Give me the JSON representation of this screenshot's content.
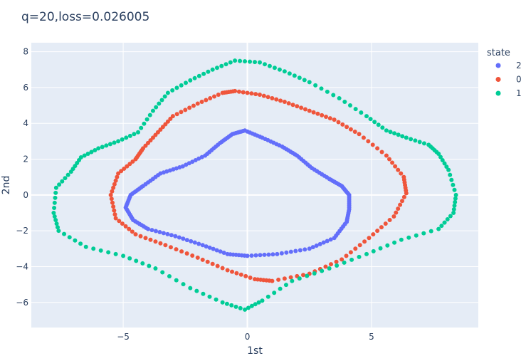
{
  "chart_data": {
    "type": "scatter",
    "title": "q=20,loss=0.026005",
    "xlabel": "1st",
    "ylabel": "2nd",
    "legend_title": "state",
    "legend_position": "top-right",
    "grid": true,
    "xlim": [
      -8.7,
      9.3
    ],
    "ylim": [
      -7.4,
      8.5
    ],
    "xticks": [
      -5,
      0,
      5
    ],
    "xtick_labels": [
      "−5",
      "0",
      "5"
    ],
    "yticks": [
      -6,
      -4,
      -2,
      0,
      2,
      4,
      6,
      8
    ],
    "ytick_labels": [
      "−6",
      "−4",
      "−2",
      "0",
      "2",
      "4",
      "6",
      "8"
    ],
    "series": [
      {
        "name": "2",
        "color": "#636efa",
        "points": [
          [
            -0.1,
            3.6
          ],
          [
            0.6,
            3.2
          ],
          [
            1.4,
            2.7
          ],
          [
            2.0,
            2.2
          ],
          [
            2.6,
            1.5
          ],
          [
            3.3,
            0.9
          ],
          [
            3.8,
            0.5
          ],
          [
            4.1,
            0
          ],
          [
            4.1,
            -0.8
          ],
          [
            4.0,
            -1.5
          ],
          [
            3.5,
            -2.4
          ],
          [
            2.5,
            -3.0
          ],
          [
            1.2,
            -3.3
          ],
          [
            0,
            -3.4
          ],
          [
            -0.8,
            -3.3
          ],
          [
            -1.8,
            -2.8
          ],
          [
            -2.9,
            -2.3
          ],
          [
            -4.0,
            -1.9
          ],
          [
            -4.6,
            -1.4
          ],
          [
            -4.9,
            -0.7
          ],
          [
            -4.7,
            0
          ],
          [
            -4.2,
            0.5
          ],
          [
            -3.5,
            1.2
          ],
          [
            -2.6,
            1.6
          ],
          [
            -1.7,
            2.2
          ],
          [
            -1.1,
            2.9
          ],
          [
            -0.6,
            3.4
          ]
        ],
        "n_per_segment": 7
      },
      {
        "name": "0",
        "color": "#ef553b",
        "points": [
          [
            -0.5,
            5.8
          ],
          [
            0.5,
            5.6
          ],
          [
            1.5,
            5.2
          ],
          [
            2.5,
            4.7
          ],
          [
            3.5,
            4.2
          ],
          [
            4.5,
            3.4
          ],
          [
            5.6,
            2.2
          ],
          [
            6.3,
            1.0
          ],
          [
            6.4,
            0.1
          ],
          [
            5.9,
            -1.2
          ],
          [
            4.9,
            -2.4
          ],
          [
            3.8,
            -3.6
          ],
          [
            2.5,
            -4.4
          ],
          [
            1.0,
            -4.8
          ],
          [
            0.3,
            -4.7
          ],
          [
            -0.8,
            -4.2
          ],
          [
            -2.0,
            -3.5
          ],
          [
            -3.3,
            -2.8
          ],
          [
            -4.5,
            -2.2
          ],
          [
            -5.3,
            -1.3
          ],
          [
            -5.5,
            0
          ],
          [
            -5.2,
            1.2
          ],
          [
            -4.5,
            2.0
          ],
          [
            -4.2,
            2.6
          ],
          [
            -3.6,
            3.5
          ],
          [
            -3.0,
            4.4
          ],
          [
            -2.0,
            5.1
          ],
          [
            -1.0,
            5.7
          ]
        ],
        "n_per_segment": 6
      },
      {
        "name": "1",
        "color": "#00cc96",
        "points": [
          [
            -0.5,
            7.5
          ],
          [
            0.5,
            7.4
          ],
          [
            1.5,
            6.9
          ],
          [
            2.5,
            6.3
          ],
          [
            3.7,
            5.4
          ],
          [
            4.8,
            4.4
          ],
          [
            5.6,
            3.6
          ],
          [
            6.4,
            3.2
          ],
          [
            7.3,
            2.8
          ],
          [
            7.7,
            2.3
          ],
          [
            8.1,
            1.4
          ],
          [
            8.4,
            0
          ],
          [
            8.3,
            -1.0
          ],
          [
            7.7,
            -1.9
          ],
          [
            6.2,
            -2.5
          ],
          [
            4.8,
            -3.3
          ],
          [
            3.3,
            -4.1
          ],
          [
            1.8,
            -4.8
          ],
          [
            0.6,
            -5.9
          ],
          [
            -0.1,
            -6.4
          ],
          [
            -1.0,
            -6.0
          ],
          [
            -2.3,
            -5.2
          ],
          [
            -3.7,
            -4.1
          ],
          [
            -5.0,
            -3.4
          ],
          [
            -6.5,
            -2.9
          ],
          [
            -7.6,
            -2.0
          ],
          [
            -7.8,
            -1.0
          ],
          [
            -7.7,
            0.4
          ],
          [
            -7.1,
            1.3
          ],
          [
            -6.7,
            2.1
          ],
          [
            -6.0,
            2.6
          ],
          [
            -5.2,
            3.0
          ],
          [
            -4.4,
            3.5
          ],
          [
            -3.8,
            4.7
          ],
          [
            -3.2,
            5.7
          ],
          [
            -2.3,
            6.4
          ],
          [
            -1.4,
            7.0
          ]
        ],
        "n_per_segment": 5
      }
    ]
  }
}
